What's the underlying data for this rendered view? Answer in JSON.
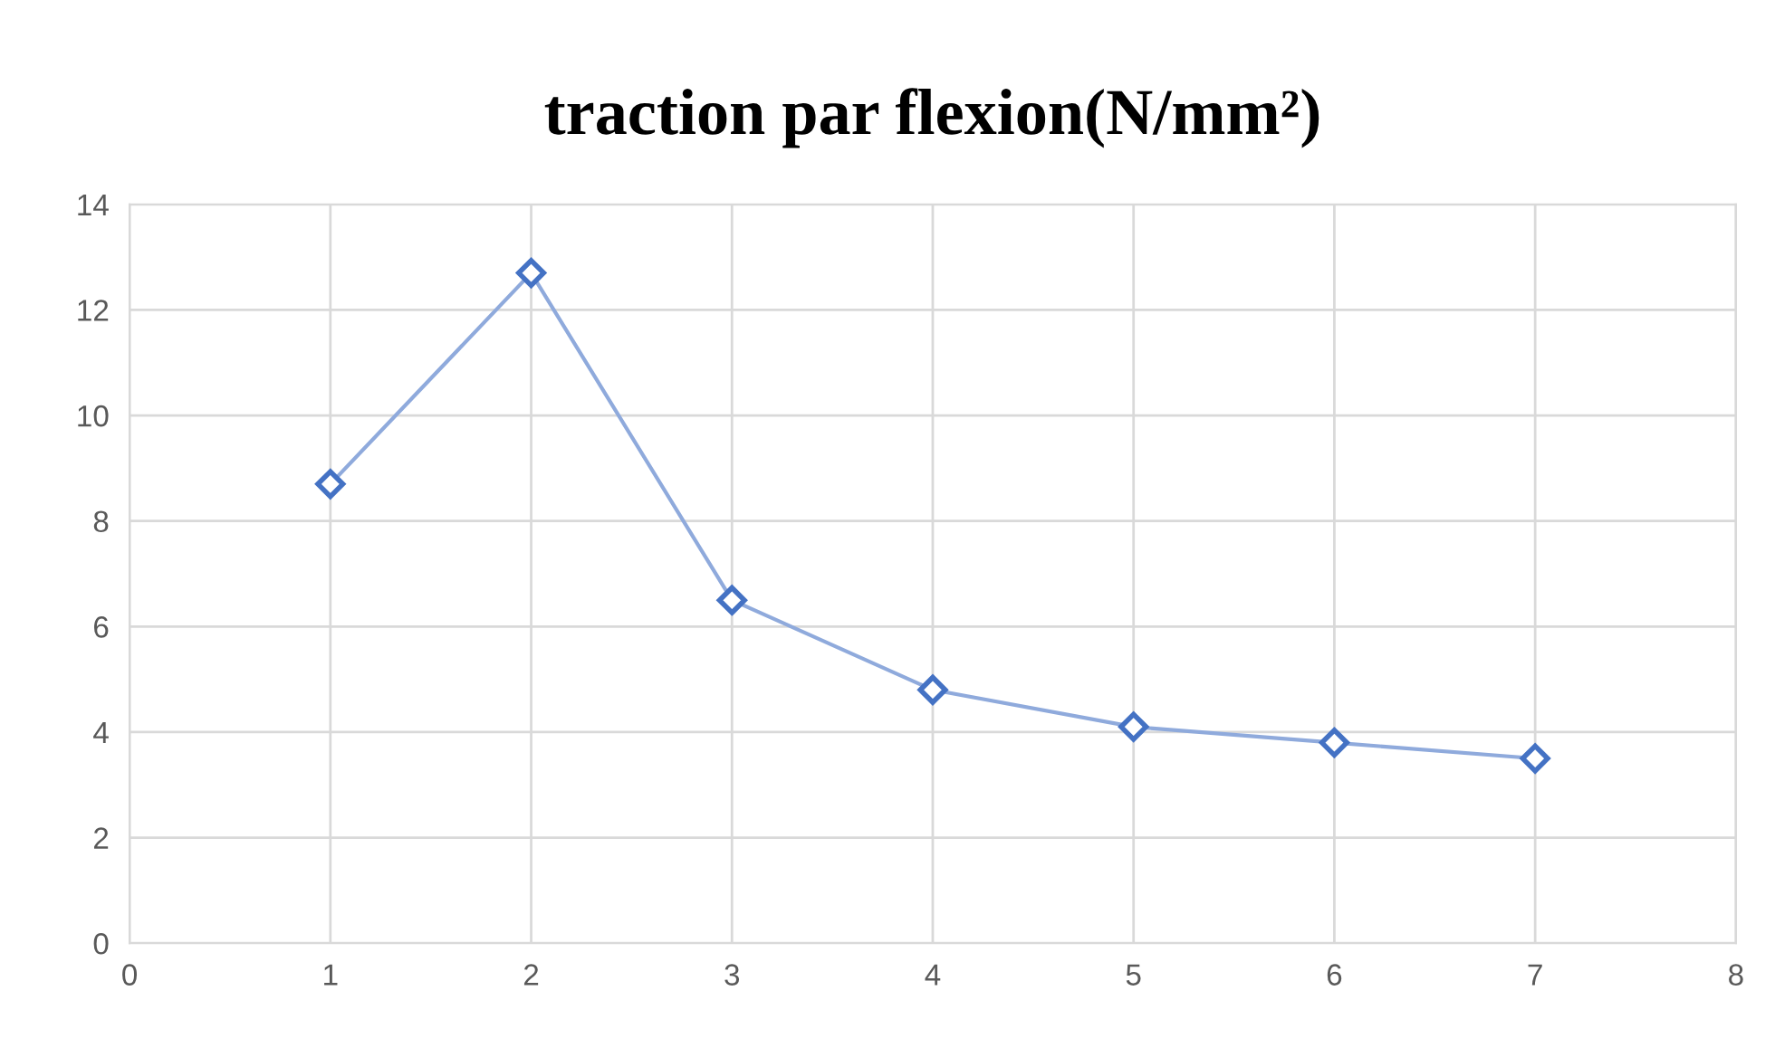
{
  "chart_data": {
    "type": "line",
    "title": "traction par flexion(N/mm²)",
    "x": [
      1,
      2,
      3,
      4,
      5,
      6,
      7
    ],
    "series": [
      {
        "color": "#4472c4",
        "values": [
          8.7,
          12.7,
          6.5,
          4.8,
          4.1,
          3.8,
          3.5
        ]
      }
    ],
    "xlim": [
      0,
      8
    ],
    "xticks": [
      0,
      1,
      2,
      3,
      4,
      5,
      6,
      7,
      8
    ],
    "ylim": [
      0,
      14
    ],
    "yticks": [
      0,
      2,
      4,
      6,
      8,
      10,
      12,
      14
    ],
    "grid": true,
    "marker": "diamond",
    "line_style": "solid"
  }
}
